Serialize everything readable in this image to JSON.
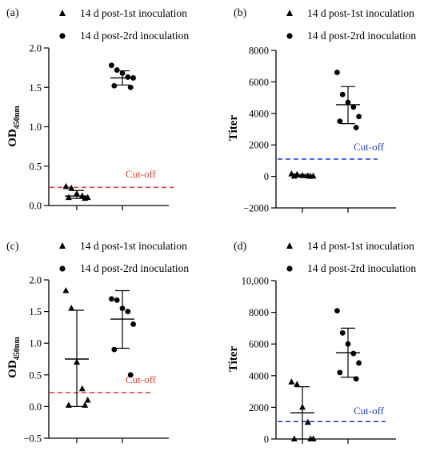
{
  "chart_data": [
    {
      "type": "scatter",
      "panel_label": "(a)",
      "ylabel": "OD450nm",
      "ylabel_main": "OD",
      "ylabel_sub": "450nm",
      "ylim": [
        0,
        2.0
      ],
      "yticks": [
        0.0,
        0.5,
        1.0,
        1.5,
        2.0
      ],
      "tick_labels": [
        "0.0",
        "0.5",
        "1.0",
        "1.5",
        "2.0"
      ],
      "cutoff": {
        "value": 0.23,
        "label": "Cut-off",
        "color": "#e8423c"
      },
      "series": [
        {
          "name": "14 d post-1st inoculation",
          "marker": "triangle",
          "values": [
            0.24,
            0.22,
            0.15,
            0.12,
            0.1,
            0.1,
            0.09
          ],
          "mean": 0.12,
          "sd_low": 0.09,
          "sd_high": 0.19
        },
        {
          "name": "14 d post-2rd inoculation",
          "marker": "circle",
          "values": [
            1.78,
            1.72,
            1.68,
            1.63,
            1.62,
            1.52,
            1.5
          ],
          "mean": 1.62,
          "sd_low": 1.53,
          "sd_high": 1.71
        }
      ]
    },
    {
      "type": "scatter",
      "panel_label": "(b)",
      "ylabel": "Titer",
      "ylim": [
        -2000,
        8000
      ],
      "yticks": [
        -2000,
        0,
        2000,
        4000,
        6000,
        8000
      ],
      "tick_labels": [
        "−2000",
        "0",
        "2000",
        "4000",
        "6000",
        "8000"
      ],
      "cutoff": {
        "value": 1100,
        "label": "Cut-off",
        "color": "#2b3de0"
      },
      "series": [
        {
          "name": "14 d post-1st inoculation",
          "marker": "triangle",
          "values": [
            150,
            120,
            50,
            30,
            20,
            10,
            0
          ],
          "mean": 50,
          "sd_low": -30,
          "sd_high": 130
        },
        {
          "name": "14 d post-2rd inoculation",
          "marker": "circle",
          "values": [
            6600,
            5200,
            4700,
            4400,
            3800,
            3500,
            3100
          ],
          "mean": 4550,
          "sd_low": 3350,
          "sd_high": 5700
        }
      ]
    },
    {
      "type": "scatter",
      "panel_label": "(c)",
      "ylabel": "OD450nm",
      "ylabel_main": "OD",
      "ylabel_sub": "450nm",
      "ylim": [
        -0.5,
        2.0
      ],
      "yticks": [
        -0.5,
        0.0,
        0.5,
        1.0,
        1.5,
        2.0
      ],
      "tick_labels": [
        "−0.5",
        "0.0",
        "0.5",
        "1.0",
        "1.5",
        "2.0"
      ],
      "cutoff": {
        "value": 0.22,
        "label": "Cut-off",
        "color": "#e8423c"
      },
      "series": [
        {
          "name": "14 d post-1st inoculation",
          "marker": "triangle",
          "values": [
            1.83,
            1.55,
            0.7,
            0.28,
            0.1,
            0.02,
            0.02
          ],
          "mean": 0.75,
          "sd_low": 0.0,
          "sd_high": 1.52
        },
        {
          "name": "14 d post-2rd inoculation",
          "marker": "circle",
          "values": [
            1.7,
            1.68,
            1.55,
            1.5,
            1.3,
            0.9,
            0.5
          ],
          "mean": 1.38,
          "sd_low": 0.92,
          "sd_high": 1.83
        }
      ]
    },
    {
      "type": "scatter",
      "panel_label": "(d)",
      "ylabel": "Titer",
      "ylim": [
        0,
        10000
      ],
      "yticks": [
        0,
        2000,
        4000,
        6000,
        8000,
        10000
      ],
      "tick_labels": [
        "0",
        "2000",
        "4000",
        "6000",
        "8000",
        "10,000"
      ],
      "cutoff": {
        "value": 1100,
        "label": "Cut-off",
        "color": "#2b3de0"
      },
      "series": [
        {
          "name": "14 d post-1st inoculation",
          "marker": "triangle",
          "values": [
            3600,
            3450,
            2000,
            1050,
            0,
            0,
            0
          ],
          "mean": 1650,
          "sd_low": 0,
          "sd_high": 3300
        },
        {
          "name": "14 d post-2rd inoculation",
          "marker": "circle",
          "values": [
            8100,
            6700,
            6000,
            5400,
            4800,
            4200,
            3800
          ],
          "mean": 5450,
          "sd_low": 3900,
          "sd_high": 7000
        }
      ]
    }
  ]
}
